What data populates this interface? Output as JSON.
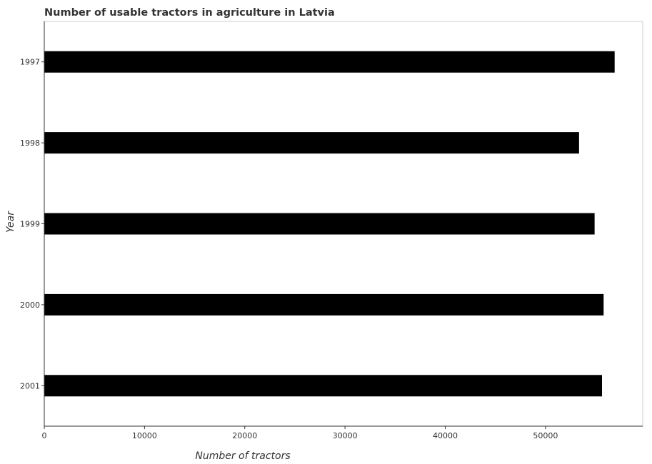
{
  "chart_data": {
    "type": "bar",
    "orientation": "horizontal",
    "title": "Number of usable tractors in agriculture in Latvia",
    "xlabel": "Number of tractors",
    "ylabel": "Year",
    "categories": [
      "1997",
      "1998",
      "1999",
      "2000",
      "2001"
    ],
    "series": [
      {
        "values": [
          56900,
          53350,
          54900,
          55800,
          55640
        ]
      }
    ],
    "xlim": [
      0,
      59700
    ],
    "xticks": [
      0,
      10000,
      20000,
      30000,
      40000,
      50000
    ],
    "xtick_labels": [
      "0",
      "10000",
      "20000",
      "30000",
      "40000",
      "50000"
    ],
    "bar_color": "#000000",
    "grid": false,
    "legend": "none"
  }
}
